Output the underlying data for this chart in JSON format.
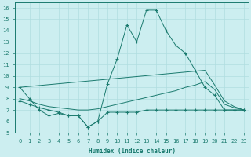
{
  "xlabel": "Humidex (Indice chaleur)",
  "xlim": [
    -0.5,
    23.5
  ],
  "ylim": [
    5,
    16.5
  ],
  "yticks": [
    5,
    6,
    7,
    8,
    9,
    10,
    11,
    12,
    13,
    14,
    15,
    16
  ],
  "xticks": [
    0,
    1,
    2,
    3,
    4,
    5,
    6,
    7,
    8,
    9,
    10,
    11,
    12,
    13,
    14,
    15,
    16,
    17,
    18,
    19,
    20,
    21,
    22,
    23
  ],
  "bg_color": "#cceef0",
  "grid_color": "#b0dde0",
  "line_color": "#1a7a6e",
  "line_series": [
    {
      "x": [
        0,
        1,
        2,
        3,
        4,
        5,
        6,
        7,
        8,
        9,
        10,
        11,
        12,
        13,
        14,
        15,
        16,
        17,
        18,
        19,
        20,
        21,
        22,
        23
      ],
      "y": [
        9.0,
        8.0,
        7.0,
        6.5,
        6.7,
        6.5,
        6.5,
        5.5,
        6.0,
        9.3,
        11.5,
        14.5,
        13.0,
        15.8,
        15.8,
        14.0,
        12.7,
        12.0,
        10.5,
        9.0,
        8.3,
        7.0,
        7.0,
        7.0
      ],
      "marker": "+"
    },
    {
      "x": [
        0,
        19,
        20,
        21,
        22,
        23
      ],
      "y": [
        9.0,
        10.5,
        9.2,
        7.8,
        7.3,
        7.0
      ],
      "marker": null
    },
    {
      "x": [
        0,
        1,
        2,
        3,
        4,
        5,
        6,
        7,
        8,
        9,
        10,
        11,
        12,
        13,
        14,
        15,
        16,
        17,
        18,
        19,
        20,
        21,
        22,
        23
      ],
      "y": [
        8.0,
        7.8,
        7.5,
        7.3,
        7.2,
        7.1,
        7.0,
        7.0,
        7.1,
        7.3,
        7.5,
        7.7,
        7.9,
        8.1,
        8.3,
        8.5,
        8.7,
        9.0,
        9.2,
        9.5,
        8.8,
        7.5,
        7.2,
        7.0
      ],
      "marker": null
    },
    {
      "x": [
        0,
        1,
        2,
        3,
        4,
        5,
        6,
        7,
        8,
        9,
        10,
        11,
        12,
        13,
        14,
        15,
        16,
        17,
        18,
        19,
        20,
        21,
        22,
        23
      ],
      "y": [
        7.8,
        7.5,
        7.2,
        7.0,
        6.8,
        6.5,
        6.5,
        5.5,
        6.0,
        6.8,
        6.8,
        6.8,
        6.8,
        7.0,
        7.0,
        7.0,
        7.0,
        7.0,
        7.0,
        7.0,
        7.0,
        7.0,
        7.0,
        7.0
      ],
      "marker": "+"
    }
  ]
}
